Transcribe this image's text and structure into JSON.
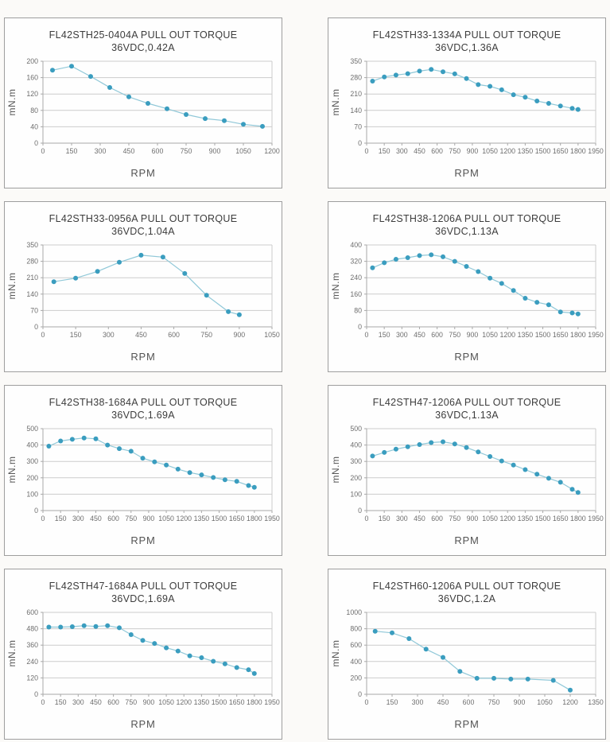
{
  "style": {
    "marker_color": "#3a9dbf",
    "line_color": "#90c8d8",
    "grid_color": "#cccccc",
    "axis_color": "#a8a8a8",
    "title_color": "#3c3c3c",
    "tick_text_color": "#6e6e6e",
    "axis_label_color": "#565656",
    "panel_border": "#9e9e9e",
    "panel_bg": "#fefefe",
    "page_bg": "#fbfaf8"
  },
  "chart_data": [
    {
      "type": "line",
      "title": "FL42STH25-0404A PULL OUT TORQUE",
      "subtitle": "36VDC,0.42A",
      "xlabel": "RPM",
      "ylabel": "mN.m",
      "xlim": [
        0,
        1200
      ],
      "ylim": [
        0,
        200
      ],
      "x_ticks": [
        0,
        150,
        300,
        450,
        600,
        750,
        900,
        1050,
        1200
      ],
      "y_ticks": [
        0,
        40,
        80,
        120,
        160,
        200
      ],
      "grid": "horizontal",
      "legend": "none",
      "x": [
        50,
        150,
        250,
        350,
        450,
        550,
        650,
        750,
        850,
        950,
        1050,
        1150
      ],
      "y": [
        178,
        188,
        163,
        136,
        113,
        97,
        84,
        70,
        60,
        55,
        46,
        41
      ]
    },
    {
      "type": "line",
      "title": "FL42STH33-1334A PULL OUT TORQUE",
      "subtitle": "36VDC,1.36A",
      "xlabel": "RPM",
      "ylabel": "mN.m",
      "xlim": [
        0,
        1950
      ],
      "ylim": [
        0,
        350
      ],
      "x_ticks": [
        0,
        150,
        300,
        450,
        600,
        750,
        900,
        1050,
        1200,
        1350,
        1500,
        1650,
        1800,
        1950
      ],
      "y_ticks": [
        0,
        70,
        140,
        210,
        280,
        350
      ],
      "grid": "horizontal",
      "legend": "none",
      "x": [
        50,
        150,
        250,
        350,
        450,
        550,
        650,
        750,
        850,
        950,
        1050,
        1150,
        1250,
        1350,
        1450,
        1550,
        1650,
        1750,
        1800
      ],
      "y": [
        265,
        283,
        291,
        297,
        308,
        315,
        305,
        296,
        276,
        250,
        243,
        228,
        207,
        196,
        180,
        170,
        159,
        149,
        144
      ]
    },
    {
      "type": "line",
      "title": "FL42STH33-0956A PULL OUT TORQUE",
      "subtitle": "36VDC,1.04A",
      "xlabel": "RPM",
      "ylabel": "mN.m",
      "xlim": [
        0,
        1050
      ],
      "ylim": [
        0,
        350
      ],
      "x_ticks": [
        0,
        150,
        300,
        450,
        600,
        750,
        900,
        1050
      ],
      "y_ticks": [
        0,
        70,
        140,
        210,
        280,
        350
      ],
      "grid": "horizontal",
      "legend": "none",
      "x": [
        50,
        150,
        250,
        350,
        450,
        550,
        650,
        750,
        850,
        900
      ],
      "y": [
        193,
        208,
        237,
        276,
        306,
        298,
        228,
        135,
        65,
        52
      ]
    },
    {
      "type": "line",
      "title": "FL42STH38-1206A PULL OUT TORQUE",
      "subtitle": "36VDC,1.13A",
      "xlabel": "RPM",
      "ylabel": "mN.m",
      "xlim": [
        0,
        1950
      ],
      "ylim": [
        0,
        400
      ],
      "x_ticks": [
        0,
        150,
        300,
        450,
        600,
        750,
        900,
        1050,
        1200,
        1350,
        1500,
        1650,
        1800,
        1950
      ],
      "y_ticks": [
        0,
        80,
        160,
        240,
        320,
        400
      ],
      "grid": "horizontal",
      "legend": "none",
      "x": [
        50,
        150,
        250,
        350,
        450,
        550,
        650,
        750,
        850,
        950,
        1050,
        1150,
        1250,
        1350,
        1450,
        1550,
        1650,
        1750,
        1800
      ],
      "y": [
        288,
        313,
        330,
        338,
        348,
        352,
        342,
        320,
        295,
        270,
        238,
        212,
        178,
        140,
        120,
        108,
        73,
        68,
        63
      ]
    },
    {
      "type": "line",
      "title": "FL42STH38-1684A PULL OUT TORQUE",
      "subtitle": "36VDC,1.69A",
      "xlabel": "RPM",
      "ylabel": "mN.m",
      "xlim": [
        0,
        1950
      ],
      "ylim": [
        0,
        500
      ],
      "x_ticks": [
        0,
        150,
        300,
        450,
        600,
        750,
        900,
        1050,
        1200,
        1350,
        1500,
        1650,
        1800,
        1950
      ],
      "y_ticks": [
        0,
        100,
        200,
        300,
        400,
        500
      ],
      "grid": "horizontal",
      "legend": "none",
      "x": [
        50,
        150,
        250,
        350,
        450,
        550,
        650,
        750,
        850,
        950,
        1050,
        1150,
        1250,
        1350,
        1450,
        1550,
        1650,
        1750,
        1800
      ],
      "y": [
        393,
        425,
        435,
        443,
        438,
        400,
        378,
        362,
        320,
        297,
        278,
        253,
        232,
        218,
        202,
        188,
        178,
        153,
        142
      ]
    },
    {
      "type": "line",
      "title": "FL42STH47-1206A PULL OUT TORQUE",
      "subtitle": "36VDC,1.13A",
      "xlabel": "RPM",
      "ylabel": "mN.m",
      "xlim": [
        0,
        1950
      ],
      "ylim": [
        0,
        500
      ],
      "x_ticks": [
        0,
        150,
        300,
        450,
        600,
        750,
        900,
        1050,
        1200,
        1350,
        1500,
        1650,
        1800,
        1950
      ],
      "y_ticks": [
        0,
        100,
        200,
        300,
        400,
        500
      ],
      "grid": "horizontal",
      "legend": "none",
      "x": [
        50,
        150,
        250,
        350,
        450,
        550,
        650,
        750,
        850,
        950,
        1050,
        1150,
        1250,
        1350,
        1450,
        1550,
        1650,
        1750,
        1800
      ],
      "y": [
        333,
        355,
        375,
        390,
        403,
        415,
        420,
        407,
        385,
        358,
        330,
        303,
        278,
        250,
        222,
        197,
        173,
        130,
        110
      ]
    },
    {
      "type": "line",
      "title": "FL42STH47-1684A PULL OUT TORQUE",
      "subtitle": "36VDC,1.69A",
      "xlabel": "RPM",
      "ylabel": "mN.m",
      "xlim": [
        0,
        1950
      ],
      "ylim": [
        0,
        600
      ],
      "x_ticks": [
        0,
        150,
        300,
        450,
        600,
        750,
        900,
        1050,
        1200,
        1350,
        1500,
        1650,
        1800,
        1950
      ],
      "y_ticks": [
        0,
        120,
        240,
        360,
        480,
        600
      ],
      "grid": "horizontal",
      "legend": "none",
      "x": [
        50,
        150,
        250,
        350,
        450,
        550,
        650,
        750,
        850,
        950,
        1050,
        1150,
        1250,
        1350,
        1450,
        1550,
        1650,
        1750,
        1800
      ],
      "y": [
        492,
        492,
        495,
        503,
        497,
        503,
        487,
        437,
        395,
        372,
        340,
        317,
        282,
        268,
        242,
        223,
        196,
        180,
        152
      ]
    },
    {
      "type": "line",
      "title": "FL42STH60-1206A PULL OUT TORQUE",
      "subtitle": "36VDC,1.2A",
      "xlabel": "RPM",
      "ylabel": "mN.m",
      "xlim": [
        0,
        1350
      ],
      "ylim": [
        0,
        1000
      ],
      "x_ticks": [
        0,
        150,
        300,
        450,
        600,
        750,
        900,
        1050,
        1200,
        1350
      ],
      "y_ticks": [
        0,
        200,
        400,
        600,
        800,
        1000
      ],
      "grid": "horizontal",
      "legend": "none",
      "x": [
        50,
        150,
        250,
        350,
        450,
        550,
        650,
        750,
        850,
        950,
        1100,
        1200
      ],
      "y": [
        770,
        750,
        680,
        550,
        450,
        280,
        195,
        195,
        185,
        185,
        170,
        50
      ]
    }
  ]
}
